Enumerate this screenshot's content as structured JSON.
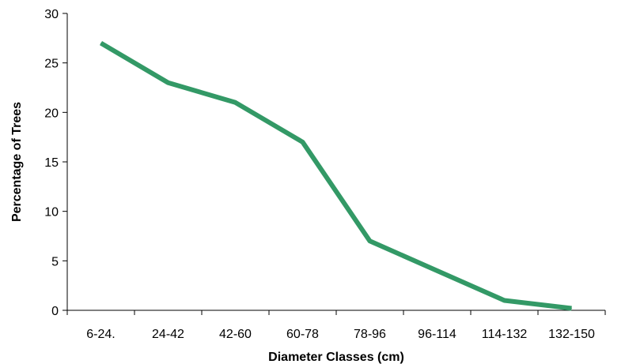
{
  "chart_data": {
    "type": "line",
    "title": "",
    "xlabel": "Diameter Classes (cm)",
    "ylabel": "Percentage of Trees",
    "categories": [
      "6-24.",
      "24-42",
      "42-60",
      "60-78",
      "78-96",
      "96-114",
      "114-132",
      "132-150"
    ],
    "series": [
      {
        "values": [
          27,
          23,
          21,
          17,
          7,
          4,
          1,
          0.2
        ],
        "color": "#339966"
      }
    ],
    "ylim": [
      0,
      30
    ],
    "yticks": [
      0,
      5,
      10,
      15,
      20,
      25,
      30
    ],
    "grid": false,
    "legend": "none"
  }
}
